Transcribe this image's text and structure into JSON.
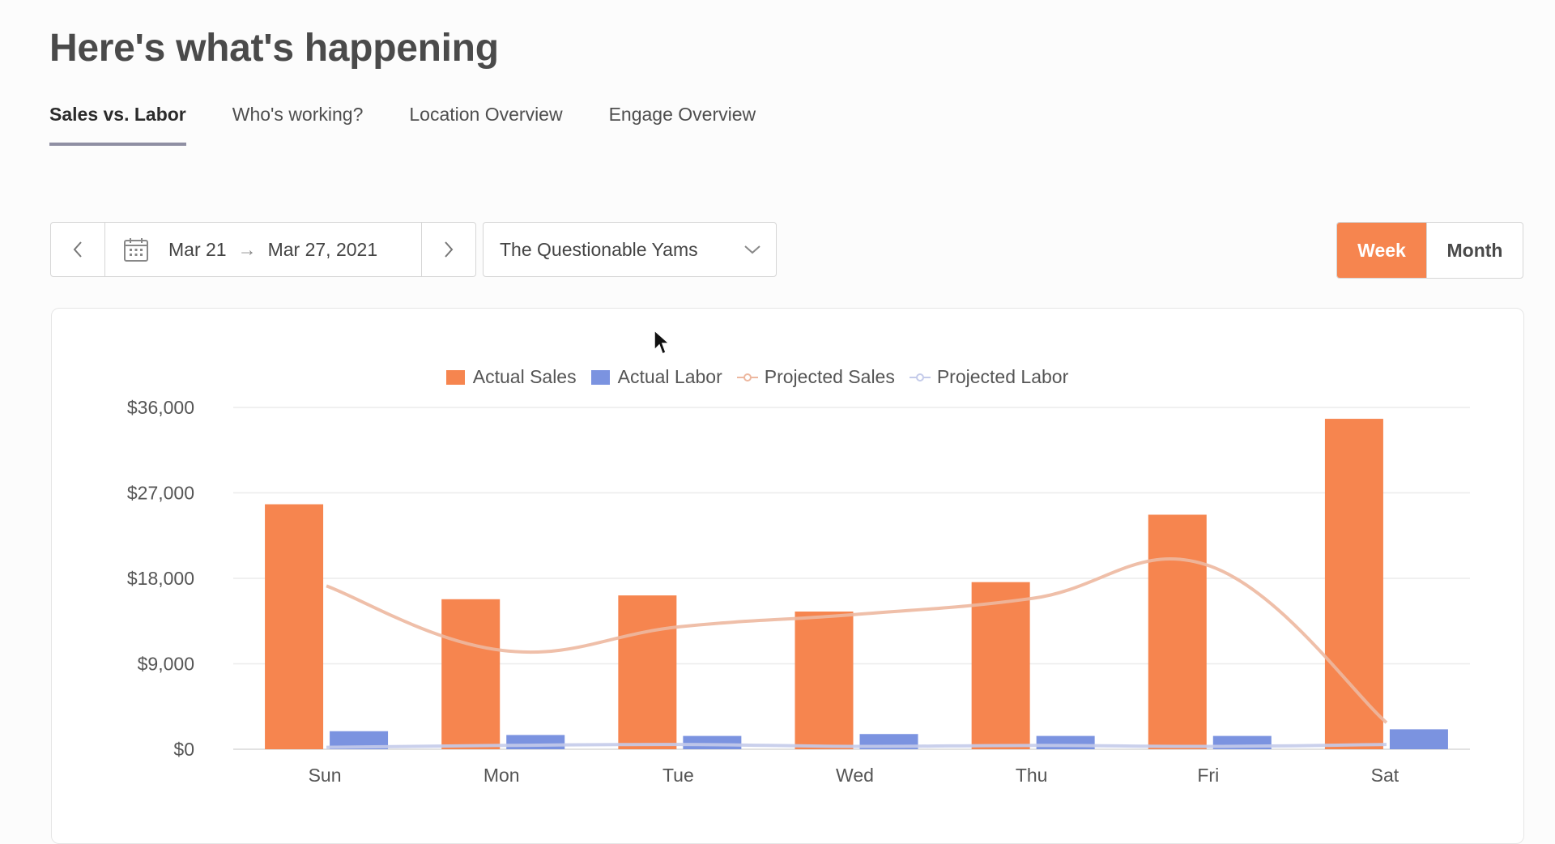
{
  "page": {
    "title": "Here's what's happening"
  },
  "tabs": [
    {
      "label": "Sales vs. Labor",
      "active": true
    },
    {
      "label": "Who's working?",
      "active": false
    },
    {
      "label": "Location Overview",
      "active": false
    },
    {
      "label": "Engage Overview",
      "active": false
    }
  ],
  "date_range": {
    "start": "Mar 21",
    "end": "Mar 27, 2021",
    "prev_icon": "chevron-left-icon",
    "next_icon": "chevron-right-icon",
    "calendar_icon": "calendar-icon"
  },
  "location": {
    "selected": "The Questionable Yams"
  },
  "period_toggle": {
    "week": "Week",
    "month": "Month",
    "active": "Week"
  },
  "colors": {
    "accent": "#f6854f",
    "actual_sales": "#f6854f",
    "actual_labor": "#7b93e0",
    "projected_sales": "#edb8a0",
    "projected_labor": "#c4cbea"
  },
  "legend": {
    "actual_sales": "Actual Sales",
    "actual_labor": "Actual Labor",
    "projected_sales": "Projected Sales",
    "projected_labor": "Projected Labor"
  },
  "chart_data": {
    "type": "bar",
    "categories": [
      "Sun",
      "Mon",
      "Tue",
      "Wed",
      "Thu",
      "Fri",
      "Sat"
    ],
    "series": [
      {
        "name": "Actual Sales",
        "type": "bar",
        "values": [
          25800,
          15800,
          16200,
          14500,
          17600,
          24700,
          34800
        ]
      },
      {
        "name": "Actual Labor",
        "type": "bar",
        "values": [
          1900,
          1500,
          1400,
          1600,
          1400,
          1400,
          2100
        ]
      },
      {
        "name": "Projected Sales",
        "type": "line",
        "values": [
          17200,
          10400,
          12900,
          14200,
          15900,
          19300,
          2800
        ]
      },
      {
        "name": "Projected Labor",
        "type": "line",
        "values": [
          200,
          400,
          500,
          300,
          400,
          300,
          500
        ]
      }
    ],
    "y_ticks": [
      "$0",
      "$9,000",
      "$18,000",
      "$27,000",
      "$36,000"
    ],
    "ylim": [
      0,
      36000
    ],
    "grid": true,
    "legend_position": "top-center"
  }
}
